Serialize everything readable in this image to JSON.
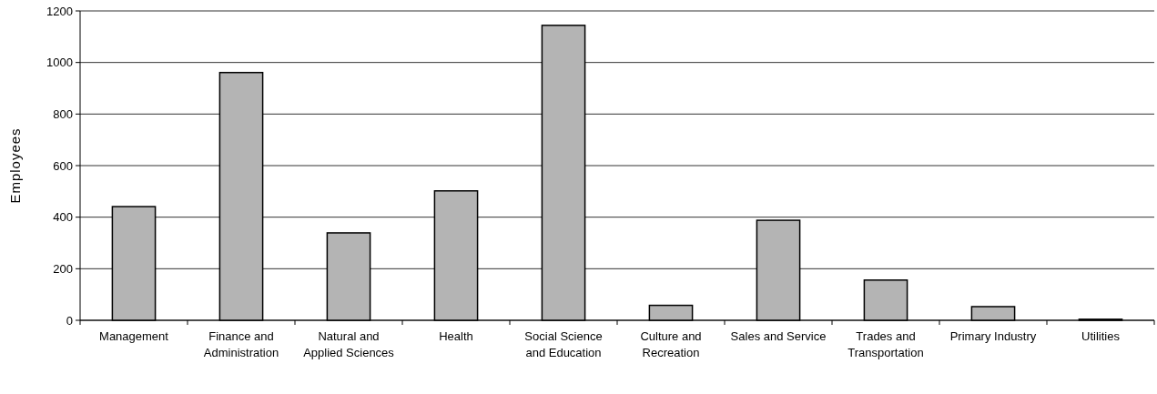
{
  "chart_data": {
    "type": "bar",
    "ylabel": "Employees",
    "categories": [
      "Management",
      "Finance and Administration",
      "Natural and Applied Sciences",
      "Health",
      "Social Science and Education",
      "Culture and Recreation",
      "Sales and Service",
      "Trades and Transportation",
      "Primary Industry",
      "Utilities"
    ],
    "values": [
      441,
      961,
      339,
      502,
      1144,
      58,
      388,
      156,
      53,
      4
    ],
    "color": "#b4b4b4",
    "ylim": [
      0,
      1200
    ],
    "yticks": [
      0,
      200,
      400,
      600,
      800,
      1000,
      1200
    ],
    "grid": "y"
  }
}
